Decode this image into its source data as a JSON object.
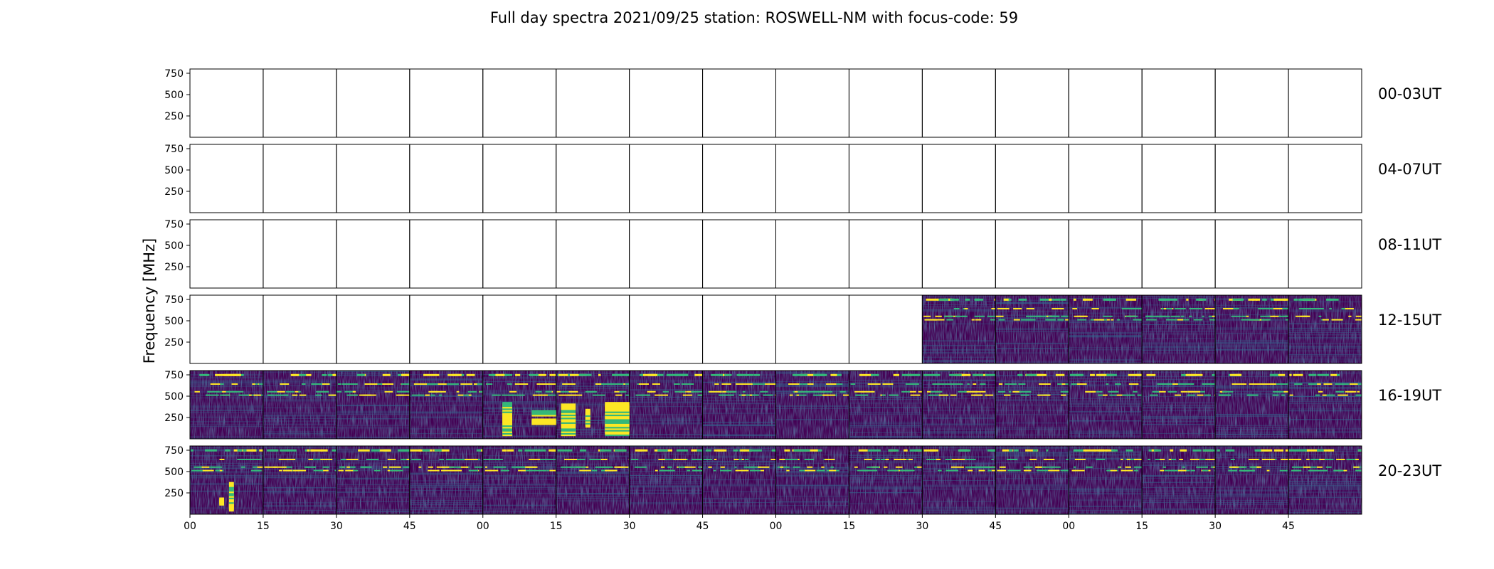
{
  "chart_data": {
    "type": "heatmap",
    "title": "Full day spectra 2021/09/25 station: ROSWELL-NM with focus-code: 59",
    "ylabel": "Frequency [MHz]",
    "xlabel": "",
    "y_ticks": [
      250,
      500,
      750
    ],
    "ylim": [
      0,
      800
    ],
    "x_ticks": [
      "00",
      "15",
      "30",
      "45",
      "00",
      "15",
      "30",
      "45",
      "00",
      "15",
      "30",
      "45",
      "00",
      "15",
      "30",
      "45"
    ],
    "colormap": "viridis",
    "colors": {
      "low": "#440154",
      "mid": "#31688e",
      "teal": "#35b779",
      "high": "#fde725",
      "empty": "#ffffff"
    },
    "minutes_per_panel": 15,
    "rows": [
      {
        "label": "00-03UT",
        "data_from_panel": 16
      },
      {
        "label": "04-07UT",
        "data_from_panel": 16
      },
      {
        "label": "08-11UT",
        "data_from_panel": 16
      },
      {
        "label": "12-15UT",
        "data_from_panel": 10
      },
      {
        "label": "16-19UT",
        "data_from_panel": 0
      },
      {
        "label": "20-23UT",
        "data_from_panel": 0
      }
    ],
    "strong_bands_mhz": [
      760,
      650,
      560,
      520
    ],
    "panels_per_row": 16,
    "bursts": [
      {
        "row": 4,
        "panel": 4,
        "minutes": [
          4,
          6
        ],
        "freq_mhz": [
          80,
          430
        ]
      },
      {
        "row": 4,
        "panel": 4,
        "minutes": [
          10,
          15
        ],
        "freq_mhz": [
          310,
          340
        ]
      },
      {
        "row": 4,
        "panel": 4,
        "minutes": [
          10,
          15
        ],
        "freq_mhz": [
          210,
          230
        ]
      },
      {
        "row": 4,
        "panel": 5,
        "minutes": [
          1,
          4
        ],
        "freq_mhz": [
          80,
          420
        ]
      },
      {
        "row": 4,
        "panel": 5,
        "minutes": [
          6,
          7
        ],
        "freq_mhz": [
          180,
          360
        ]
      },
      {
        "row": 4,
        "panel": 5,
        "minutes": [
          10,
          15
        ],
        "freq_mhz": [
          80,
          440
        ]
      },
      {
        "row": 5,
        "panel": 0,
        "minutes": [
          8,
          9
        ],
        "freq_mhz": [
          80,
          380
        ]
      },
      {
        "row": 5,
        "panel": 0,
        "minutes": [
          6,
          7
        ],
        "freq_mhz": [
          150,
          200
        ]
      }
    ]
  }
}
